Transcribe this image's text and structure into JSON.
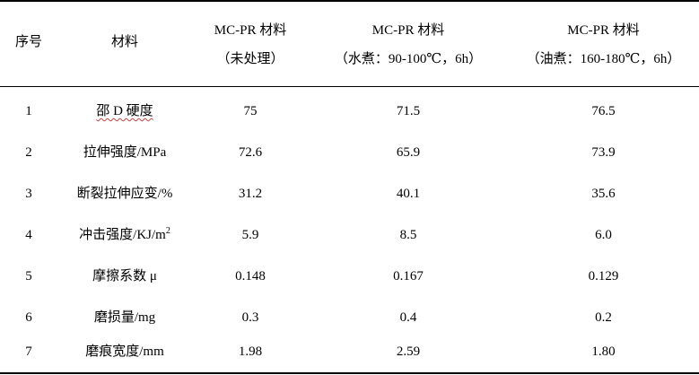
{
  "headers": {
    "index": "序号",
    "material": "材料",
    "col1": {
      "line1": "MC-PR 材料",
      "line2": "（未处理）"
    },
    "col2": {
      "line1": "MC-PR 材料",
      "line2": "（水煮：90-100℃，6h）"
    },
    "col3": {
      "line1": "MC-PR 材料",
      "line2": "（油煮：160-180℃，6h）"
    }
  },
  "rows": [
    {
      "index": "1",
      "property": "邵 D 硬度",
      "untreated": "75",
      "water_boiled": "71.5",
      "oil_boiled": "76.5"
    },
    {
      "index": "2",
      "property": "拉伸强度/MPa",
      "untreated": "72.6",
      "water_boiled": "65.9",
      "oil_boiled": "73.9"
    },
    {
      "index": "3",
      "property": "断裂拉伸应变/%",
      "untreated": "31.2",
      "water_boiled": "40.1",
      "oil_boiled": "35.6"
    },
    {
      "index": "4",
      "property": "冲击强度/KJ/m",
      "property_sup": "2",
      "untreated": "5.9",
      "water_boiled": "8.5",
      "oil_boiled": "6.0"
    },
    {
      "index": "5",
      "property": "摩擦系数 μ",
      "untreated": "0.148",
      "water_boiled": "0.167",
      "oil_boiled": "0.129"
    },
    {
      "index": "6",
      "property": "磨损量/mg",
      "untreated": "0.3",
      "water_boiled": "0.4",
      "oil_boiled": "0.2"
    },
    {
      "index": "7",
      "property": "磨痕宽度/mm",
      "untreated": "1.98",
      "water_boiled": "2.59",
      "oil_boiled": "1.80"
    }
  ]
}
